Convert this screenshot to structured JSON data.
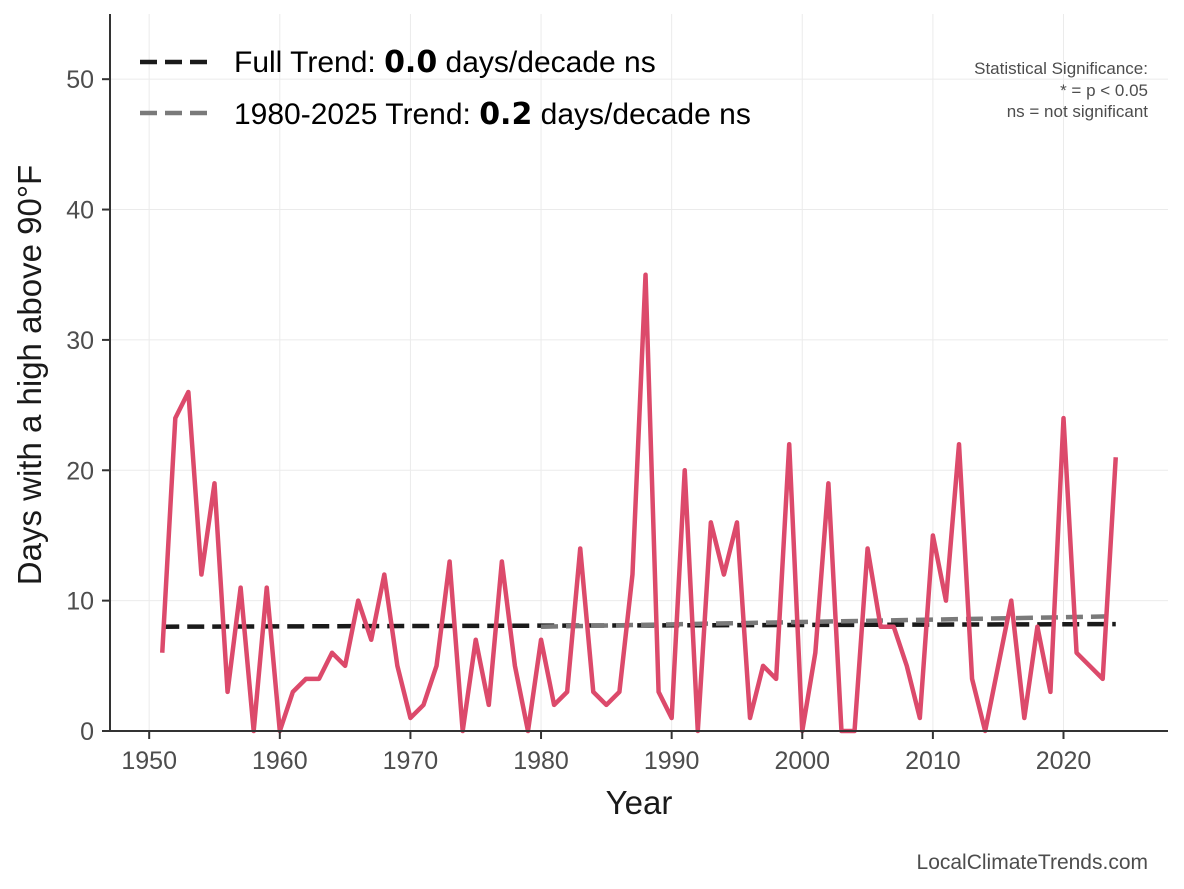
{
  "chart_data": {
    "type": "line",
    "title": "",
    "xlabel": "Year",
    "ylabel": "Days with a high above 90°F",
    "xlim": [
      1947,
      2028
    ],
    "ylim": [
      0,
      55
    ],
    "grid": true,
    "xticks": [
      1950,
      1960,
      1970,
      1980,
      1990,
      2000,
      2010,
      2020
    ],
    "yticks": [
      0,
      10,
      20,
      30,
      40,
      50
    ],
    "series": [
      {
        "name": "Days with a high above 90°F",
        "color": "#DC4A6B",
        "x": [
          1951,
          1952,
          1953,
          1954,
          1955,
          1956,
          1957,
          1958,
          1959,
          1960,
          1961,
          1962,
          1963,
          1964,
          1965,
          1966,
          1967,
          1968,
          1969,
          1970,
          1971,
          1972,
          1973,
          1974,
          1975,
          1976,
          1977,
          1978,
          1979,
          1980,
          1981,
          1982,
          1983,
          1984,
          1985,
          1986,
          1987,
          1988,
          1989,
          1990,
          1991,
          1992,
          1993,
          1994,
          1995,
          1996,
          1997,
          1998,
          1999,
          2000,
          2001,
          2002,
          2003,
          2004,
          2005,
          2006,
          2007,
          2008,
          2009,
          2010,
          2011,
          2012,
          2013,
          2014,
          2015,
          2016,
          2017,
          2018,
          2019,
          2020,
          2021,
          2022,
          2023,
          2024
        ],
        "values": [
          6,
          24,
          26,
          12,
          19,
          3,
          11,
          0,
          11,
          0,
          3,
          4,
          4,
          6,
          5,
          10,
          7,
          12,
          5,
          1,
          2,
          5,
          13,
          0,
          7,
          2,
          13,
          5,
          0,
          7,
          2,
          3,
          14,
          3,
          2,
          3,
          12,
          35,
          3,
          1,
          20,
          0,
          16,
          12,
          16,
          1,
          5,
          4,
          22,
          0,
          6,
          19,
          0,
          0,
          14,
          8,
          8,
          5,
          1,
          15,
          10,
          22,
          4,
          0,
          5,
          10,
          1,
          8,
          3,
          24,
          6,
          5,
          4,
          21
        ]
      }
    ],
    "trends": [
      {
        "name": "Full Trend",
        "x": [
          1951,
          2024
        ],
        "y": [
          8.0,
          8.2
        ],
        "color": "#1a1a1a"
      },
      {
        "name": "1980-2025 Trend",
        "x": [
          1980,
          2024
        ],
        "y": [
          8.0,
          8.8
        ],
        "color": "#7a7a7a"
      }
    ],
    "legend": {
      "position": "top-left",
      "entries": [
        {
          "prefix": "Full Trend: ",
          "value": "0.0",
          "suffix": " days/decade ns"
        },
        {
          "prefix": "1980-2025 Trend: ",
          "value": "0.2",
          "suffix": " days/decade ns"
        }
      ]
    },
    "significance_note": [
      "Statistical Significance:",
      "* = p < 0.05",
      "ns = not significant"
    ],
    "credit": "LocalClimateTrends.com"
  }
}
